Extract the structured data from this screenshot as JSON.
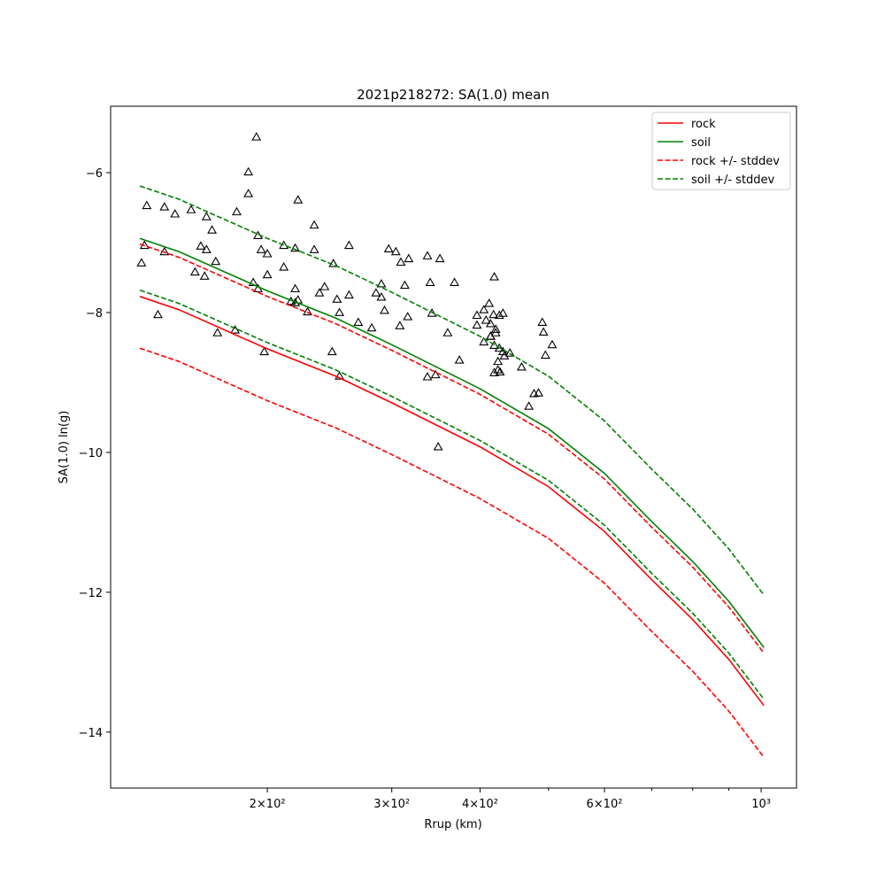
{
  "chart_data": {
    "type": "line",
    "title": "2021p218272: SA(1.0) mean",
    "xlabel": "Rrup (km)",
    "ylabel": "SA(1.0) ln(g)",
    "xscale": "log",
    "xlim": [
      120,
      1122
    ],
    "ylim": [
      -14.8,
      -5.05
    ],
    "xticks": [
      {
        "value": 200,
        "label": "2×10²"
      },
      {
        "value": 300,
        "label": "3×10²"
      },
      {
        "value": 400,
        "label": "4×10²"
      },
      {
        "value": 600,
        "label": "6×10²"
      },
      {
        "value": 1000,
        "label": "10³"
      }
    ],
    "xminor": [
      500,
      700,
      800,
      900
    ],
    "yticks": [
      {
        "value": -6,
        "label": "−6"
      },
      {
        "value": -8,
        "label": "−8"
      },
      {
        "value": -10,
        "label": "−10"
      },
      {
        "value": -12,
        "label": "−12"
      },
      {
        "value": -14,
        "label": "−14"
      }
    ],
    "legend": "upper right",
    "x": [
      132,
      150,
      200,
      250,
      300,
      400,
      500,
      600,
      700,
      800,
      900,
      1009
    ],
    "series": [
      {
        "name": "rock",
        "color": "#ff0000",
        "dash": false,
        "values": [
          -7.77,
          -7.96,
          -8.52,
          -8.91,
          -9.29,
          -9.92,
          -10.49,
          -11.13,
          -11.82,
          -12.39,
          -12.96,
          -13.62
        ]
      },
      {
        "name": "soil",
        "color": "#008000",
        "dash": false,
        "values": [
          -6.94,
          -7.13,
          -7.69,
          -8.08,
          -8.46,
          -9.09,
          -9.66,
          -10.3,
          -10.99,
          -11.56,
          -12.13,
          -12.79
        ]
      },
      {
        "name": "rock +/- stddev",
        "color": "#ff0000",
        "dash": true,
        "values": [
          -7.02,
          -7.21,
          -7.77,
          -8.16,
          -8.54,
          -9.17,
          -9.74,
          -10.38,
          -11.07,
          -11.64,
          -12.21,
          -12.87
        ],
        "lower": [
          -8.51,
          -8.7,
          -9.26,
          -9.65,
          -10.03,
          -10.66,
          -11.23,
          -11.87,
          -12.56,
          -13.13,
          -13.7,
          -14.36
        ]
      },
      {
        "name": "soil +/- stddev",
        "color": "#008000",
        "dash": true,
        "values": [
          -6.19,
          -6.38,
          -6.94,
          -7.33,
          -7.71,
          -8.34,
          -8.91,
          -9.55,
          -10.24,
          -10.81,
          -11.38,
          -12.04
        ],
        "lower": [
          -7.68,
          -7.87,
          -8.43,
          -8.82,
          -9.2,
          -9.83,
          -10.4,
          -11.04,
          -11.73,
          -12.3,
          -12.87,
          -13.53
        ]
      }
    ],
    "points": {
      "color": "#000000",
      "x": [
        132.7,
        134,
        135,
        140,
        143,
        143,
        148,
        156,
        158,
        161,
        163,
        164,
        164,
        167,
        169,
        170,
        180,
        181,
        188,
        188,
        193,
        191,
        194,
        194,
        196,
        198,
        200,
        200,
        211,
        211,
        216,
        219,
        219,
        219,
        221,
        221,
        228,
        233,
        233,
        237,
        241,
        247,
        248,
        251,
        253,
        253,
        261,
        261,
        269,
        281,
        285,
        290,
        290,
        293,
        297,
        304,
        308,
        309,
        313,
        316,
        317,
        337,
        337,
        340,
        342,
        346,
        349,
        351,
        360,
        368,
        374,
        396,
        396,
        405,
        405,
        408,
        412,
        414,
        414,
        414,
        418,
        419,
        419,
        419,
        421,
        421,
        424,
        424,
        426,
        426,
        427,
        431,
        431,
        433,
        441,
        458,
        469,
        477,
        484,
        490,
        492,
        495,
        506
      ],
      "y": [
        -7.29,
        -7.04,
        -6.47,
        -8.03,
        -6.49,
        -7.13,
        -6.59,
        -6.53,
        -7.42,
        -7.05,
        -7.48,
        -7.1,
        -6.63,
        -6.82,
        -7.27,
        -8.29,
        -8.25,
        -6.56,
        -5.99,
        -6.3,
        -5.49,
        -7.57,
        -6.9,
        -7.66,
        -7.1,
        -8.56,
        -7.16,
        -7.46,
        -7.35,
        -7.04,
        -7.84,
        -7.08,
        -7.86,
        -7.66,
        -6.39,
        -7.82,
        -7.99,
        -6.75,
        -7.1,
        -7.72,
        -7.63,
        -8.56,
        -7.3,
        -7.81,
        -8.91,
        -8,
        -7.04,
        -7.75,
        -8.14,
        -8.22,
        -7.72,
        -7.78,
        -7.59,
        -7.97,
        -7.09,
        -7.13,
        -8.19,
        -7.28,
        -7.61,
        -8.06,
        -7.23,
        -7.19,
        -8.92,
        -7.57,
        -8.01,
        -8.89,
        -9.92,
        -7.23,
        -8.29,
        -7.57,
        -8.68,
        -8.04,
        -8.18,
        -8.42,
        -7.96,
        -8.11,
        -7.87,
        -8.34,
        -8.16,
        -8.34,
        -8.03,
        -7.49,
        -8.86,
        -8.47,
        -8.24,
        -8.29,
        -8.7,
        -8.82,
        -8.04,
        -8.51,
        -8.85,
        -8.01,
        -8.56,
        -8.62,
        -8.58,
        -8.78,
        -9.34,
        -9.16,
        -9.15,
        -8.14,
        -8.28,
        -8.61,
        -8.46
      ]
    }
  }
}
